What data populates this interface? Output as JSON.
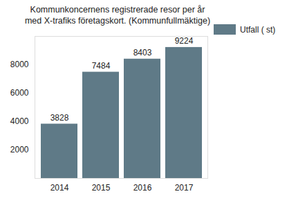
{
  "chart_data": {
    "type": "bar",
    "title": "Kommunkoncernens registrerade resor per år\nmed X-trafiks företagskort. (Kommunfullmäktige)",
    "categories": [
      "2014",
      "2015",
      "2016",
      "2017"
    ],
    "series": [
      {
        "name": "Utfall ( st)",
        "color": "#5f7a87",
        "values": [
          3828,
          7484,
          8403,
          9224
        ]
      }
    ],
    "ylim": [
      0,
      10000
    ],
    "yticks": [
      2000,
      4000,
      6000,
      8000
    ],
    "grid": false,
    "legend": "top-right",
    "data_labels": true
  }
}
